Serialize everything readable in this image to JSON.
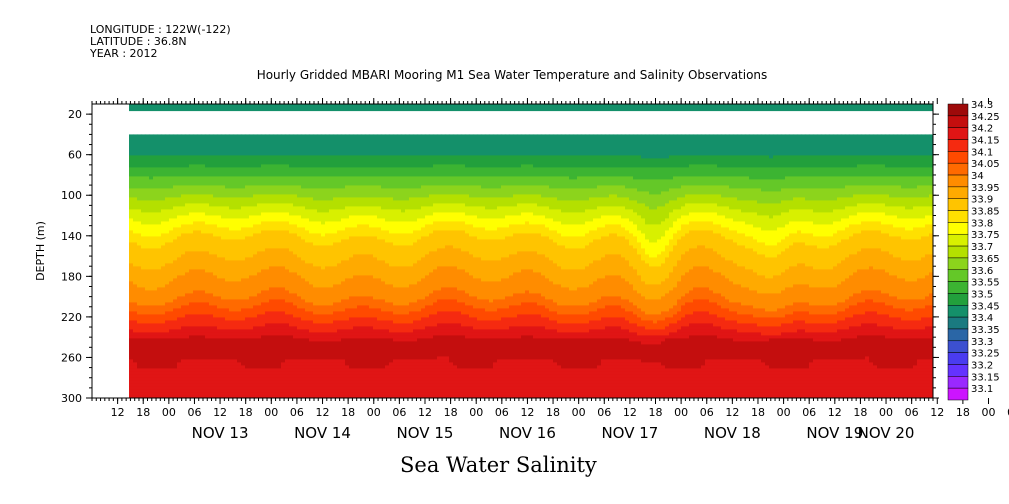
{
  "header": {
    "longitude": "LONGITUDE : 122W(-122)",
    "latitude": "LATITUDE : 36.8N",
    "year": "YEAR : 2012"
  },
  "title": "Hourly Gridded MBARI Mooring M1 Sea Water Temperature and Salinity Observations",
  "variable_title": "Sea Water Salinity",
  "chart_data": {
    "type": "heatmap",
    "title": "Hourly Gridded MBARI Mooring M1 Sea Water Temperature and Salinity Observations",
    "xlabel": "",
    "ylabel": "DEPTH (m)",
    "y_range": [
      10,
      300
    ],
    "y_ticks": [
      20,
      60,
      100,
      140,
      180,
      220,
      260,
      300
    ],
    "y_inverted": true,
    "x_range_hours": "NOV 12 06 - NOV 20 11",
    "x_hour_tick_labels": [
      "12",
      "18",
      "00",
      "06",
      "12",
      "18",
      "00",
      "06",
      "12",
      "18",
      "00",
      "06",
      "12",
      "18",
      "00",
      "06",
      "12",
      "18",
      "00",
      "06",
      "12",
      "18",
      "00",
      "06",
      "12",
      "18",
      "00",
      "06",
      "12",
      "18",
      "00",
      "06",
      "12",
      "18",
      "00",
      "06"
    ],
    "x_date_labels": [
      "NOV 13",
      "NOV 14",
      "NOV 15",
      "NOV 16",
      "NOV 17",
      "NOV 18",
      "NOV 19",
      "NOV 20"
    ],
    "data_start": "NOV 12 15",
    "no_data_depth_band": [
      17,
      40
    ],
    "surface_salinity": 33.45,
    "salinity_profile": [
      {
        "depth": 40,
        "value": 33.45
      },
      {
        "depth": 60,
        "value": 33.5
      },
      {
        "depth": 80,
        "value": 33.6
      },
      {
        "depth": 100,
        "value": 33.7
      },
      {
        "depth": 120,
        "value": 33.8
      },
      {
        "depth": 140,
        "value": 33.9
      },
      {
        "depth": 160,
        "value": 33.95
      },
      {
        "depth": 180,
        "value": 34.0
      },
      {
        "depth": 200,
        "value": 34.05
      },
      {
        "depth": 220,
        "value": 34.15
      },
      {
        "depth": 240,
        "value": 34.25
      },
      {
        "depth": 260,
        "value": 34.25
      },
      {
        "depth": 280,
        "value": 34.2
      },
      {
        "depth": 300,
        "value": 34.2
      }
    ],
    "colorbar": {
      "labels": [
        "34.3",
        "34.25",
        "34.2",
        "34.15",
        "34.1",
        "34.05",
        "34",
        "33.95",
        "33.9",
        "33.85",
        "33.8",
        "33.75",
        "33.7",
        "33.65",
        "33.6",
        "33.55",
        "33.5",
        "33.45",
        "33.4",
        "33.35",
        "33.3",
        "33.25",
        "33.2",
        "33.15",
        "33.1"
      ],
      "colors": [
        "#9e0a0a",
        "#c40e0e",
        "#e01515",
        "#f52a10",
        "#ff4a00",
        "#ff6a00",
        "#ff8c00",
        "#ffaa00",
        "#ffc400",
        "#ffe000",
        "#ffff00",
        "#d8f000",
        "#b4e000",
        "#8cd41c",
        "#64c828",
        "#3cb432",
        "#22a03c",
        "#14906a",
        "#1a7a80",
        "#2a66a6",
        "#3c50d0",
        "#4a3cf0",
        "#6432ff",
        "#9a28ff",
        "#cc14ff"
      ]
    }
  }
}
